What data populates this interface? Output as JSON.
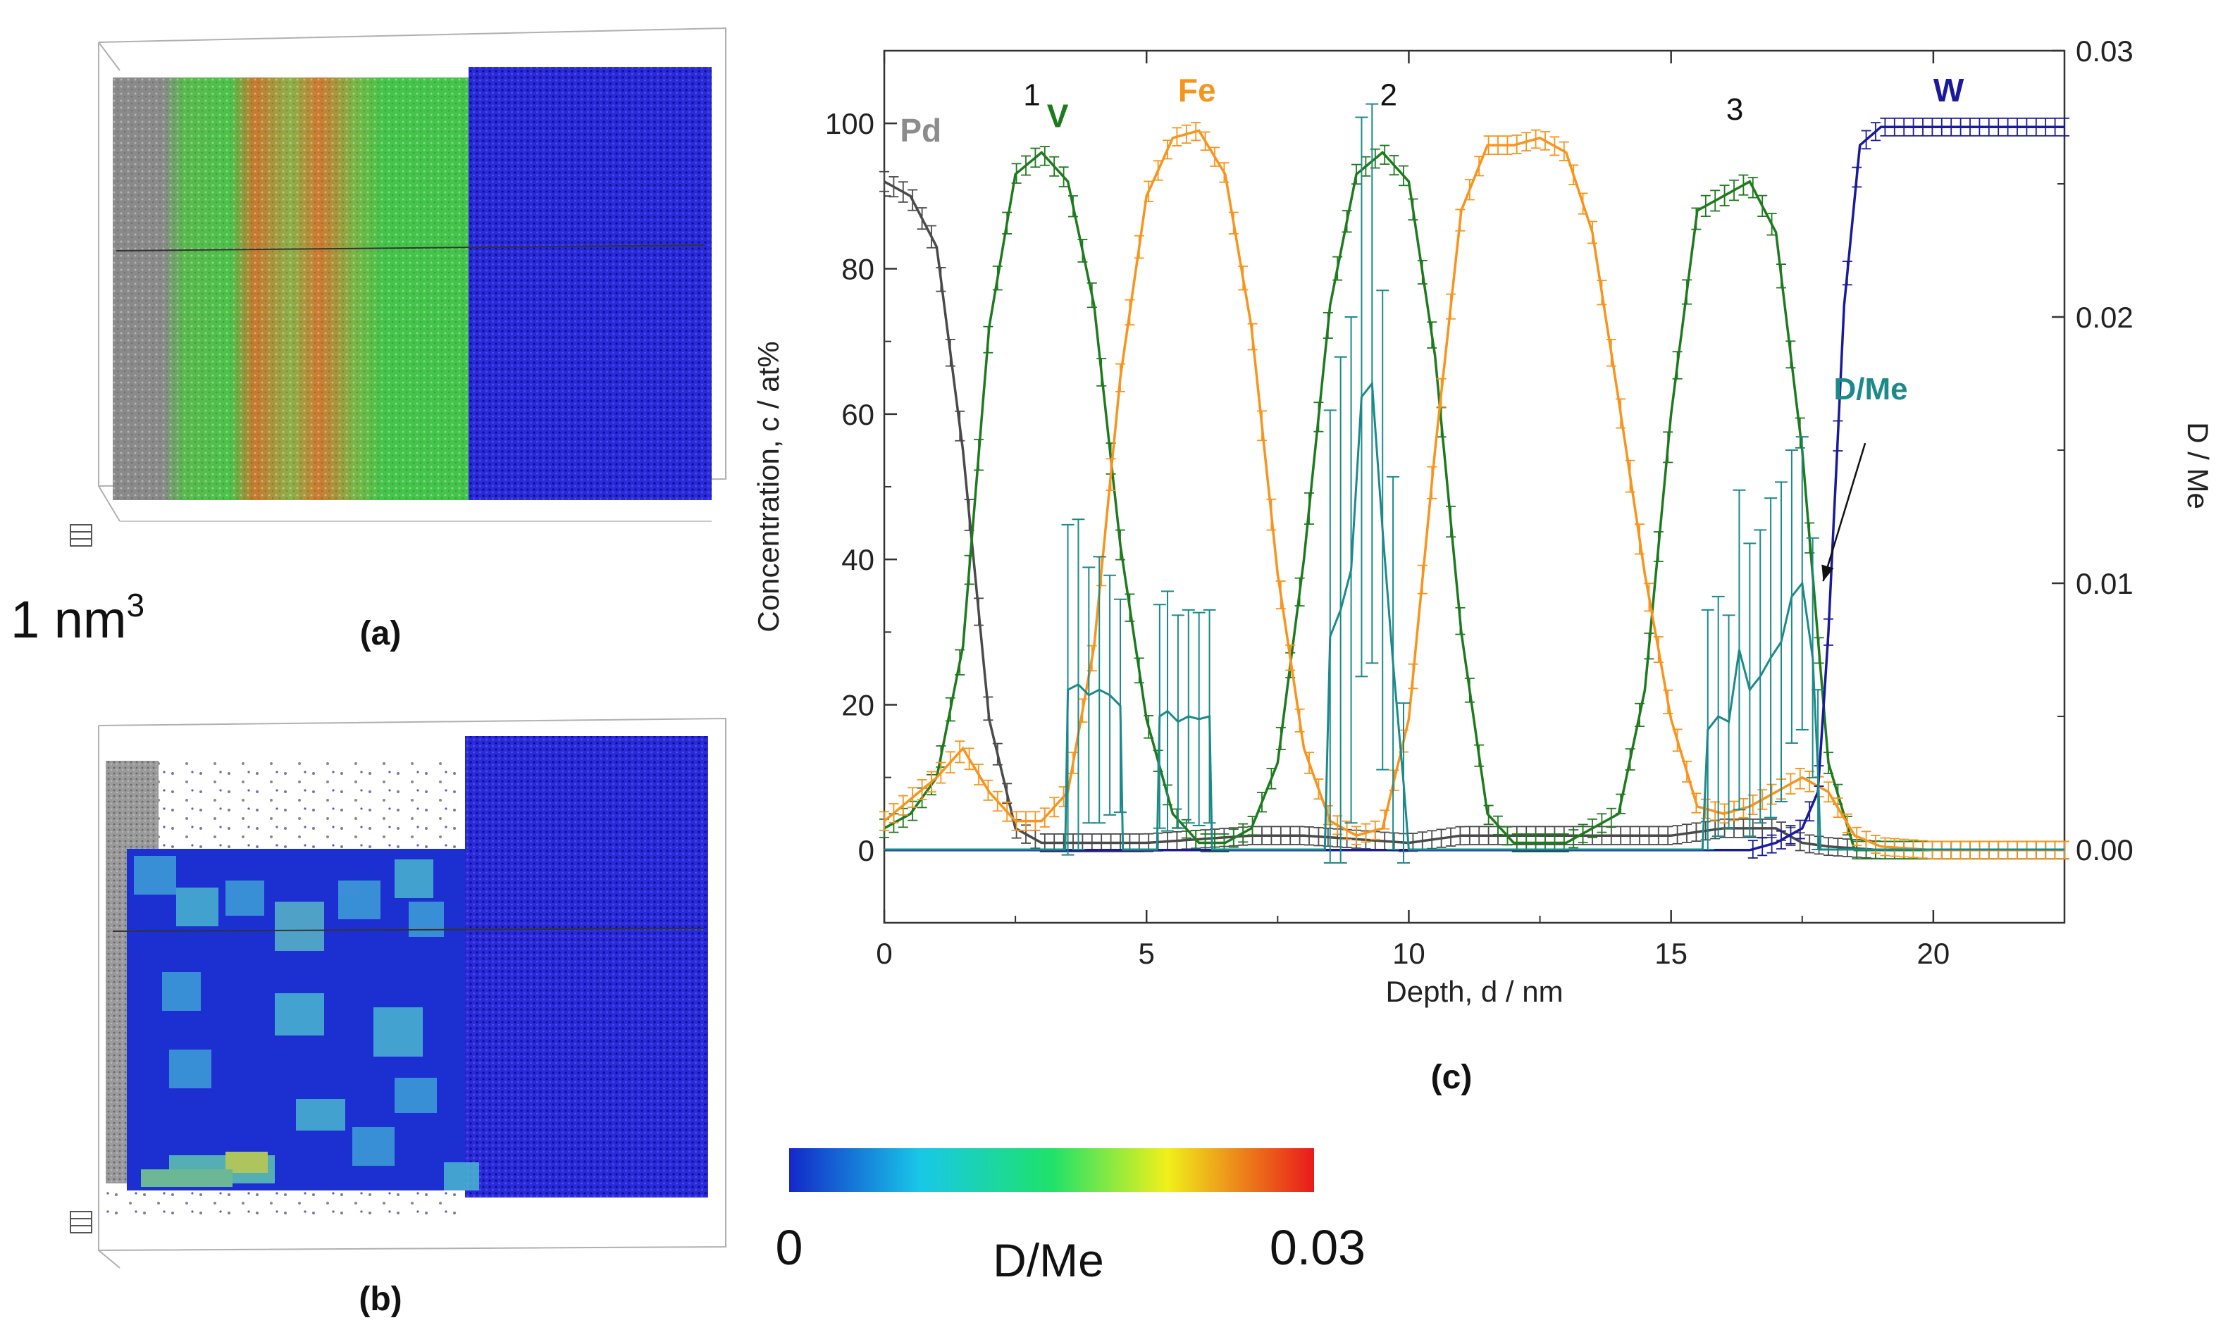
{
  "panel_labels": {
    "a": "(a)",
    "b": "(b)",
    "c": "(c)"
  },
  "scale_label": "1 nm",
  "scale_sup": "3",
  "colorbar": {
    "min_label": "0",
    "max_label": "0.03",
    "title": "D/Me"
  },
  "colors": {
    "Pd": "#4a4a4a",
    "Pd_label": "#8c8c8c",
    "V": "#1f7a1f",
    "Fe": "#f7941d",
    "W": "#1a1a9a",
    "DMe": "#1c8a8a",
    "green_atoms": "#3ec23e",
    "orange_atoms": "#d9752a",
    "blue_atoms": "#1414c8",
    "grey_atoms": "#8a8a8a"
  },
  "chart_data": {
    "type": "line",
    "xlabel": "Depth, d / nm",
    "ylabel": "Concentration, c / at%",
    "y2label": "D / Me",
    "xlim": [
      0,
      22.5
    ],
    "ylim": [
      -10,
      110
    ],
    "y2lim": [
      -0.00275,
      0.03
    ],
    "xticks": [
      "0",
      "5",
      "10",
      "15",
      "20"
    ],
    "yticks": [
      "0",
      "20",
      "40",
      "60",
      "80",
      "100"
    ],
    "y2ticks": [
      "0.00",
      "0.01",
      "0.02",
      "0.03"
    ],
    "annotations": {
      "layer1": "1",
      "layer2": "2",
      "layer3": "3",
      "dme_label": "D/Me"
    },
    "series": [
      {
        "name": "Pd",
        "axis": "left",
        "x": [
          0,
          0.5,
          1.0,
          1.5,
          2.0,
          2.5,
          3.0,
          4.0,
          5.0,
          6.0,
          7.0,
          8.0,
          9.0,
          10.0,
          11.0,
          12.0,
          13.0,
          14.0,
          15.0,
          16.0,
          17.0,
          17.5,
          18.0,
          19.0,
          22.5
        ],
        "y": [
          92,
          90,
          83,
          55,
          18,
          3,
          1,
          1,
          1,
          1.5,
          2,
          2,
          1.5,
          1,
          2,
          2,
          2,
          2,
          2,
          3,
          3,
          1,
          0.5,
          0,
          0
        ]
      },
      {
        "name": "V",
        "axis": "left",
        "x": [
          0,
          0.5,
          1.0,
          1.5,
          2.0,
          2.5,
          3.0,
          3.5,
          4.0,
          4.5,
          5.0,
          5.5,
          6.0,
          6.5,
          7.0,
          7.5,
          8.0,
          8.5,
          9.0,
          9.5,
          10.0,
          10.5,
          11.0,
          11.5,
          12.0,
          13.0,
          14.0,
          14.5,
          15.0,
          15.5,
          16.0,
          16.5,
          17.0,
          17.5,
          18.0,
          18.5,
          22.5
        ],
        "y": [
          3,
          5,
          10,
          28,
          72,
          93,
          96,
          92,
          75,
          42,
          18,
          5,
          1,
          1,
          3,
          12,
          40,
          75,
          93,
          96,
          92,
          68,
          30,
          5,
          1,
          1,
          5,
          22,
          60,
          88,
          90,
          92,
          85,
          55,
          12,
          0,
          0
        ]
      },
      {
        "name": "Fe",
        "axis": "left",
        "x": [
          0,
          0.5,
          1.0,
          1.5,
          2.0,
          2.5,
          3.0,
          3.5,
          4.0,
          4.5,
          5.0,
          5.5,
          6.0,
          6.5,
          7.0,
          7.5,
          8.0,
          8.5,
          9.0,
          9.5,
          10.0,
          10.5,
          11.0,
          11.5,
          12.0,
          12.5,
          13.0,
          13.5,
          14.0,
          14.5,
          15.0,
          15.5,
          16.0,
          16.5,
          17.0,
          17.5,
          18.0,
          18.5,
          19.0,
          20.0,
          22.5
        ],
        "y": [
          4,
          7,
          10,
          14,
          8,
          4,
          4,
          8,
          28,
          65,
          90,
          98,
          99,
          93,
          72,
          38,
          14,
          4,
          2,
          3,
          18,
          55,
          88,
          97,
          97,
          98,
          96,
          85,
          62,
          38,
          18,
          6,
          5,
          6,
          8,
          10,
          8,
          2,
          0.5,
          0,
          0
        ]
      },
      {
        "name": "W",
        "axis": "left",
        "x": [
          0,
          16.5,
          17.0,
          17.5,
          17.8,
          18.0,
          18.3,
          18.6,
          19.0,
          20.0,
          21.0,
          22.5
        ],
        "y": [
          0,
          0,
          1,
          3,
          8,
          30,
          75,
          97,
          99.5,
          99.5,
          99.5,
          99.5
        ]
      },
      {
        "name": "D/Me",
        "axis": "right",
        "x": [
          0,
          3.45,
          3.5,
          3.7,
          3.9,
          4.1,
          4.3,
          4.5,
          4.55,
          5.2,
          5.25,
          5.4,
          5.6,
          5.8,
          6.0,
          6.2,
          6.25,
          8.4,
          8.5,
          8.7,
          8.9,
          9.1,
          9.3,
          9.5,
          9.7,
          9.9,
          10.0,
          15.6,
          15.7,
          15.9,
          16.1,
          16.3,
          16.5,
          16.7,
          16.9,
          17.1,
          17.3,
          17.5,
          17.7,
          17.8,
          17.85,
          22.5
        ],
        "y": [
          0,
          0,
          0.006,
          0.0062,
          0.0058,
          0.006,
          0.0058,
          0.0054,
          0,
          0,
          0.005,
          0.0052,
          0.0048,
          0.005,
          0.0049,
          0.005,
          0,
          0,
          0.008,
          0.009,
          0.0105,
          0.017,
          0.0175,
          0.012,
          0.007,
          0.0025,
          0,
          0,
          0.0045,
          0.005,
          0.0048,
          0.0075,
          0.006,
          0.0065,
          0.0072,
          0.0078,
          0.0095,
          0.01,
          0.0072,
          0.003,
          0,
          0
        ],
        "err": [
          0,
          0,
          0.0062,
          0.0062,
          0.0048,
          0.005,
          0.0045,
          0.004,
          0,
          0,
          0.0042,
          0.0045,
          0.004,
          0.004,
          0.004,
          0.004,
          0,
          0,
          0.0085,
          0.0095,
          0.0095,
          0.0105,
          0.0105,
          0.009,
          0.007,
          0.003,
          0,
          0,
          0.0045,
          0.0045,
          0.004,
          0.006,
          0.0055,
          0.0055,
          0.006,
          0.006,
          0.0055,
          0.0055,
          0.0045,
          0.003,
          0,
          0
        ]
      }
    ]
  }
}
